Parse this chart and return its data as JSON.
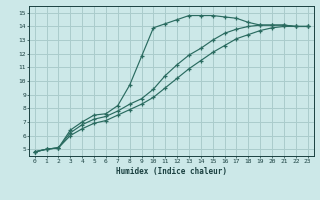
{
  "xlabel": "Humidex (Indice chaleur)",
  "bg_color": "#cce8e8",
  "grid_color": "#aacccc",
  "line_color": "#2a6b60",
  "xlim": [
    -0.5,
    23.5
  ],
  "ylim": [
    4.5,
    15.5
  ],
  "xticks": [
    0,
    1,
    2,
    3,
    4,
    5,
    6,
    7,
    8,
    9,
    10,
    11,
    12,
    13,
    14,
    15,
    16,
    17,
    18,
    19,
    20,
    21,
    22,
    23
  ],
  "yticks": [
    5,
    6,
    7,
    8,
    9,
    10,
    11,
    12,
    13,
    14,
    15
  ],
  "line1_x": [
    0,
    1,
    2,
    3,
    4,
    5,
    6,
    7,
    8,
    9,
    10,
    11,
    12,
    13,
    14,
    15,
    16,
    17,
    18,
    19,
    20,
    21,
    22,
    23
  ],
  "line1_y": [
    4.8,
    5.0,
    5.1,
    6.4,
    7.0,
    7.5,
    7.6,
    8.2,
    9.7,
    11.8,
    13.9,
    14.2,
    14.5,
    14.8,
    14.8,
    14.8,
    14.7,
    14.6,
    14.3,
    14.1,
    14.1,
    14.1,
    14.0,
    14.0
  ],
  "line2_x": [
    0,
    1,
    2,
    3,
    4,
    5,
    6,
    7,
    8,
    9,
    10,
    11,
    12,
    13,
    14,
    15,
    16,
    17,
    18,
    19,
    20,
    21,
    22,
    23
  ],
  "line2_y": [
    4.8,
    5.0,
    5.1,
    6.2,
    6.8,
    7.2,
    7.4,
    7.8,
    8.3,
    8.7,
    9.4,
    10.4,
    11.2,
    11.9,
    12.4,
    13.0,
    13.5,
    13.8,
    14.0,
    14.1,
    14.1,
    14.1,
    14.0,
    14.0
  ],
  "line3_x": [
    0,
    1,
    2,
    3,
    4,
    5,
    6,
    7,
    8,
    9,
    10,
    11,
    12,
    13,
    14,
    15,
    16,
    17,
    18,
    19,
    20,
    21,
    22,
    23
  ],
  "line3_y": [
    4.8,
    5.0,
    5.1,
    6.0,
    6.5,
    6.9,
    7.1,
    7.5,
    7.9,
    8.3,
    8.8,
    9.5,
    10.2,
    10.9,
    11.5,
    12.1,
    12.6,
    13.1,
    13.4,
    13.7,
    13.9,
    14.0,
    14.0,
    14.0
  ]
}
